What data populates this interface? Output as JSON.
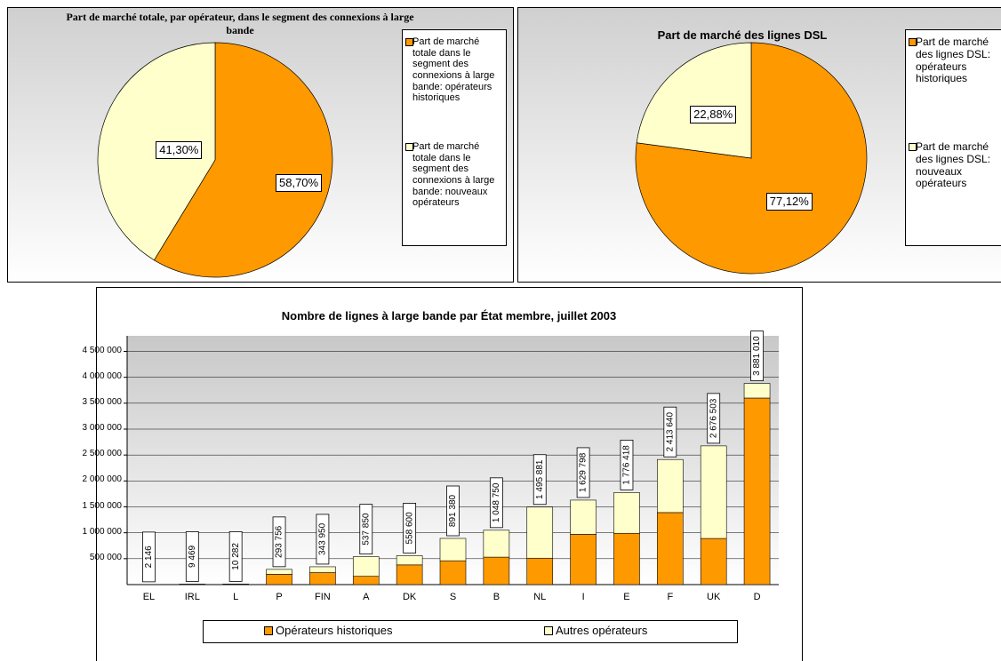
{
  "chart_data": [
    {
      "type": "pie",
      "title": "Part de marché totale, par opérateur, dans le segment des connexions à large bande",
      "categories": [
        "Part de marché totale dans le segment des connexions à large bande: opérateurs historiques",
        "Part de marché totale dans le segment des connexions à large bande: nouveaux opérateurs"
      ],
      "values": [
        58.7,
        41.3
      ],
      "value_labels": [
        "58,70%",
        "41,30%"
      ],
      "colors": [
        "#ff9900",
        "#ffffcc"
      ]
    },
    {
      "type": "pie",
      "title": "Part de marché des lignes DSL",
      "categories": [
        "Part de marché des lignes DSL: opérateurs historiques",
        "Part de marché des lignes DSL: nouveaux opérateurs"
      ],
      "values": [
        77.12,
        22.88
      ],
      "value_labels": [
        "77,12%",
        "22,88%"
      ],
      "colors": [
        "#ff9900",
        "#ffffcc"
      ]
    },
    {
      "type": "bar",
      "stacked": true,
      "title": "Nombre de lignes à large bande par État membre, juillet 2003",
      "categories": [
        "EL",
        "IRL",
        "L",
        "P",
        "FIN",
        "A",
        "DK",
        "S",
        "B",
        "NL",
        "I",
        "E",
        "F",
        "UK",
        "D"
      ],
      "series": [
        {
          "name": "Opérateurs historiques",
          "color": "#ff9900",
          "values": [
            1000,
            5000,
            8000,
            200000,
            230000,
            160000,
            380000,
            460000,
            530000,
            510000,
            970000,
            990000,
            1390000,
            890000,
            3600000
          ]
        },
        {
          "name": "Autres opérateurs",
          "color": "#ffffcc",
          "values": [
            1146,
            4469,
            2282,
            93756,
            113950,
            377850,
            178600,
            431380,
            518750,
            985881,
            659798,
            786418,
            1023640,
            1786503,
            281010
          ]
        }
      ],
      "totals": [
        2146,
        9469,
        10282,
        293756,
        343950,
        537850,
        558600,
        891380,
        1048750,
        1495881,
        1629798,
        1776418,
        2413640,
        2676503,
        3881010
      ],
      "total_labels": [
        "2 146",
        "9 469",
        "10 282",
        "293 756",
        "343 950",
        "537 850",
        "558 600",
        "891 380",
        "1 048 750",
        "1 495 881",
        "1 629 798",
        "1 776 418",
        "2 413 640",
        "2 676 503",
        "3 881 010"
      ],
      "ylim": [
        0,
        4800000
      ],
      "yticks": [
        {
          "value": 500000,
          "label": "500 000"
        },
        {
          "value": 1000000,
          "label": "1 000 000"
        },
        {
          "value": 1500000,
          "label": "1 500 000"
        },
        {
          "value": 2000000,
          "label": "2 000 000"
        },
        {
          "value": 2500000,
          "label": "2 500 000"
        },
        {
          "value": 3000000,
          "label": "3 000 000"
        },
        {
          "value": 3500000,
          "label": "3 500 000"
        },
        {
          "value": 4000000,
          "label": "4 000 000"
        },
        {
          "value": 4500000,
          "label": "4 500 000"
        }
      ],
      "grid": true,
      "legend": "bottom"
    }
  ]
}
